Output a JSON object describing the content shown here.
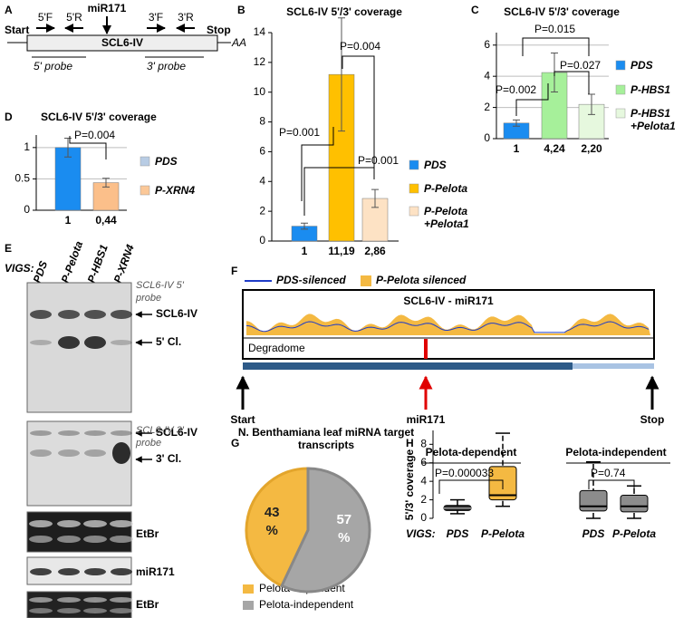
{
  "panel_labels": {
    "a": "A",
    "b": "B",
    "c": "C",
    "d": "D",
    "e": "E",
    "f": "F",
    "g": "G",
    "h": "H"
  },
  "panel_a": {
    "start": "Start",
    "stop": "Stop",
    "gene": "SCL6-IV",
    "poly_a": "AA",
    "mirna": "miR171",
    "primers": [
      "5'F",
      "5'R",
      "3'F",
      "3'R"
    ],
    "probes": [
      "5' probe",
      "3' probe"
    ]
  },
  "chart_data": [
    {
      "type": "bar",
      "title": "SCL6-IV 5'/3' coverage",
      "categories": [
        "PDS",
        "P-Pelota",
        "P-Pelota +Pelota1"
      ],
      "values": [
        1,
        11.19,
        2.86
      ],
      "value_labels": [
        "1",
        "11,19",
        "2,86"
      ],
      "errors": [
        0.2,
        3.8,
        0.6
      ],
      "colors": [
        "#1a8cf0",
        "#ffc000",
        "#fde2c4"
      ],
      "ylim": [
        0,
        14
      ],
      "yticks": [
        0,
        2,
        4,
        6,
        8,
        10,
        12,
        14
      ],
      "grid": false,
      "annotations": [
        "P=0.001",
        "P=0.004",
        "P=0.001"
      ]
    },
    {
      "type": "bar",
      "title": "SCL6-IV 5'/3' coverage",
      "categories": [
        "PDS",
        "P-HBS1",
        "P-HBS1 +Pelota1"
      ],
      "values": [
        1,
        4.24,
        2.2
      ],
      "value_labels": [
        "1",
        "4,24",
        "2,20"
      ],
      "errors": [
        0.2,
        1.25,
        0.65
      ],
      "colors": [
        "#1a8cf0",
        "#a6f09a",
        "#e6f8de"
      ],
      "ylim": [
        0,
        6.8
      ],
      "yticks": [
        0,
        2,
        4,
        6
      ],
      "grid": true,
      "annotations": [
        "P=0.002",
        "P=0.015",
        "P=0.027"
      ]
    },
    {
      "type": "bar",
      "title": "SCL6-IV 5'/3' coverage",
      "categories": [
        "PDS",
        "P-XRN4"
      ],
      "values": [
        1,
        0.44
      ],
      "value_labels": [
        "1",
        "0,44"
      ],
      "errors": [
        0.15,
        0.07
      ],
      "colors": [
        "#1a8cf0",
        "#fbbf8a"
      ],
      "legend_colors": [
        "#b8cce4",
        "#fbc898"
      ],
      "ylim": [
        0,
        1.2
      ],
      "yticks": [
        0,
        0.5,
        1
      ],
      "grid": true,
      "annotations": [
        "P=0.004"
      ]
    },
    {
      "type": "pie",
      "title": "N. Benthamiana leaf miRNA target transcripts",
      "categories": [
        "Pelota-dependent",
        "Pelota-independent"
      ],
      "values": [
        43,
        57
      ],
      "value_labels": [
        "43 %",
        "57 %"
      ],
      "colors": [
        "#f4b942",
        "#a6a6a6"
      ]
    },
    {
      "type": "box",
      "ylabel": "5'/3' coverage",
      "groups": [
        "Pelota-dependent",
        "Pelota-independent"
      ],
      "axis_prefix": "VIGS:",
      "categories": [
        "PDS",
        "P-Pelota",
        "PDS",
        "P-Pelota"
      ],
      "boxes": [
        {
          "low": 0.5,
          "q1": 0.85,
          "median": 1.1,
          "q3": 1.4,
          "high": 2.0
        },
        {
          "low": 1.3,
          "q1": 2.0,
          "median": 2.5,
          "q3": 5.6,
          "high": 9.2
        },
        {
          "low": 0,
          "q1": 0.8,
          "median": 1.3,
          "q3": 3.0,
          "high": 6.1
        },
        {
          "low": 0,
          "q1": 0.7,
          "median": 1.3,
          "q3": 2.5,
          "high": 3.5
        }
      ],
      "colors": [
        "#1a1a1a",
        "#f4b942",
        "#8c8c8c",
        "#8c8c8c"
      ],
      "ylim": [
        0,
        9.5
      ],
      "yticks": [
        0,
        2,
        4,
        6,
        8
      ],
      "annotations": [
        "P=0.000033",
        "P=0.74"
      ]
    }
  ],
  "panel_e": {
    "vigs": "VIGS:",
    "lanes": [
      "PDS",
      "P-Pelota",
      "P-HBS1",
      "P-XRN4"
    ],
    "blots": [
      {
        "probe": "SCL6-IV 5' probe",
        "bands": [
          "SCL6-IV",
          "5' Cl."
        ]
      },
      {
        "probe": "SCL6-IV 3' probe",
        "bands": [
          "SCL6-IV",
          "3' Cl."
        ]
      }
    ],
    "stains": [
      "EtBr",
      "miR171",
      "EtBr"
    ]
  },
  "panel_f": {
    "legend": [
      "PDS-silenced",
      "P-Pelota silenced"
    ],
    "title": "SCL6-IV - miR171",
    "track": "Degradome",
    "markers": [
      "Start",
      "miR171",
      "Stop"
    ]
  }
}
